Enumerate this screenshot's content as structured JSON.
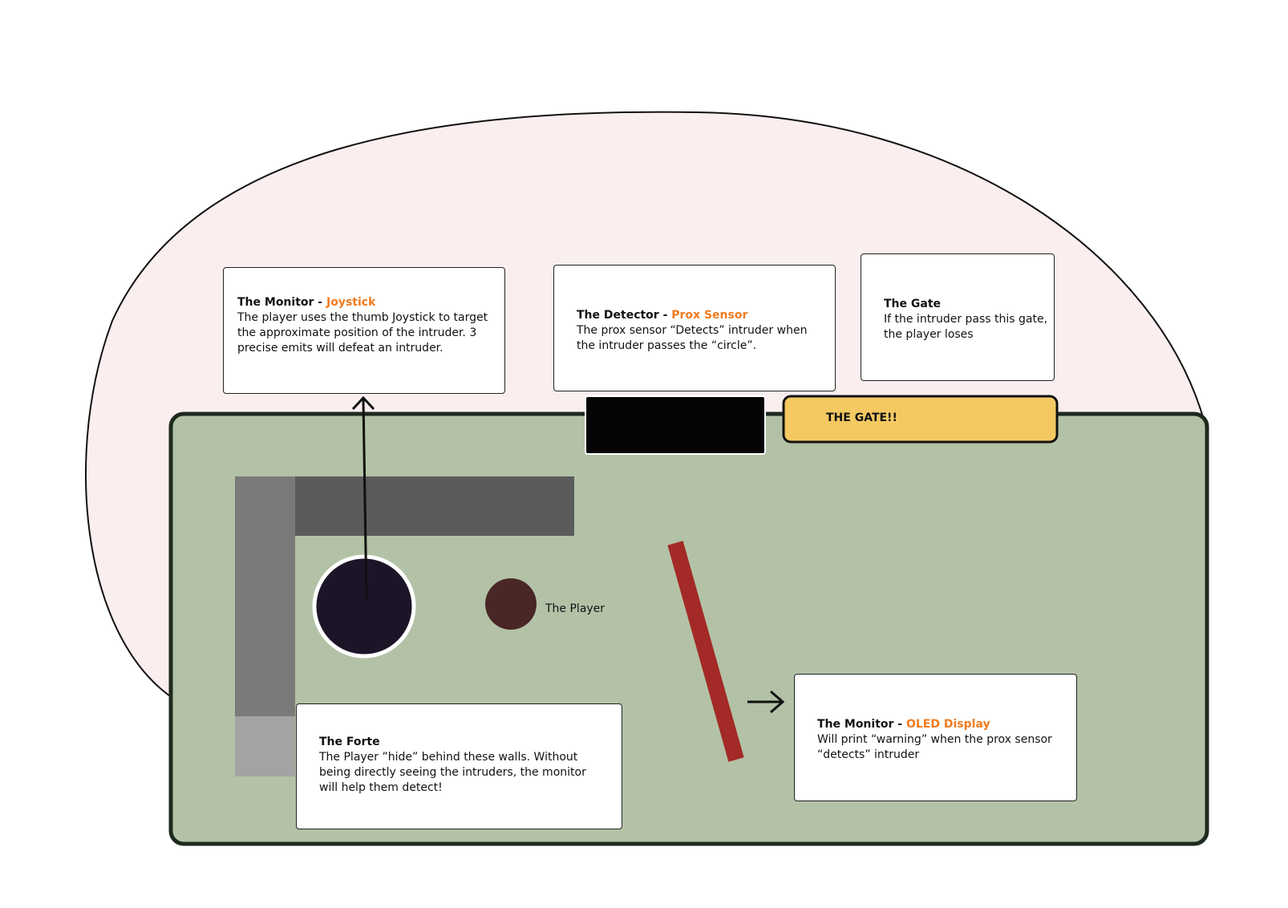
{
  "colors": {
    "blob_fill": "#fbeeee",
    "board_fill": "#b3c2a6",
    "board_stroke": "#1e2a1e",
    "wall_dark": "#5b5b5b",
    "wall_mid": "#7a7a7a",
    "wall_light": "#a3a3a3",
    "joystick_fill": "#1c1528",
    "player_fill": "#4a2626",
    "detector_fill": "#050505",
    "gate_fill": "#f4c962",
    "barrier_fill": "#a32a26",
    "accent_text": "#f07b1f"
  },
  "cards": {
    "joystick": {
      "title": "The Monitor - ",
      "accent": "Joystick",
      "body": "The player uses the thumb Joystick to target the approximate position of the intruder. 3 precise emits will defeat an intruder."
    },
    "detector": {
      "title": "The Detector - ",
      "accent": "Prox Sensor",
      "body": "The prox sensor “Detects” intruder when the intruder passes the “circle”."
    },
    "gate": {
      "title": "The Gate",
      "body": "If the intruder pass this gate, the player loses"
    },
    "forte": {
      "title": "The Forte",
      "body": "The Player ”hide” behind these walls. Without being directly seeing the intruders, the monitor will help them detect!"
    },
    "oled": {
      "title": "The Monitor - ",
      "accent": "OLED Display",
      "body": "Will print “warning” when the prox sensor “detects” intruder"
    }
  },
  "labels": {
    "gate": "THE GATE!!",
    "player": "The Player"
  },
  "icons": {
    "joystick_arrow": "arrow-up-icon",
    "oled_arrow": "arrow-right-icon"
  }
}
